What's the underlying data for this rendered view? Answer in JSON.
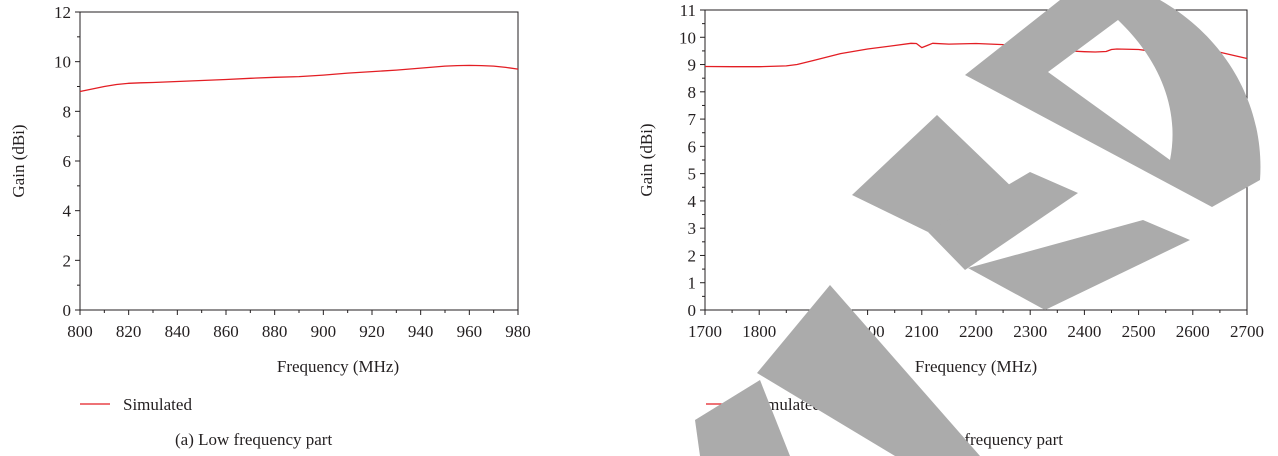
{
  "watermark_color": "#ababab",
  "charts": [
    {
      "caption": "(a)  Low frequency part",
      "legend_label": "Simulated",
      "chart_data": {
        "type": "line",
        "title": "",
        "xlabel": "Frequency (MHz)",
        "ylabel": "Gain (dBi)",
        "xlim": [
          800,
          980
        ],
        "ylim": [
          0,
          12
        ],
        "xticks": [
          800,
          820,
          840,
          860,
          880,
          900,
          920,
          940,
          960,
          980
        ],
        "yticks": [
          0,
          2,
          4,
          6,
          8,
          10,
          12
        ],
        "grid": false,
        "legend_position": "bottom-left",
        "series": [
          {
            "name": "Simulated",
            "color": "#e31e24",
            "x": [
              800,
              805,
              810,
              815,
              820,
              825,
              830,
              840,
              850,
              860,
              870,
              880,
              890,
              900,
              910,
              920,
              930,
              940,
              950,
              955,
              960,
              965,
              970,
              975,
              980
            ],
            "y": [
              8.8,
              8.9,
              9.0,
              9.08,
              9.13,
              9.15,
              9.16,
              9.2,
              9.24,
              9.28,
              9.33,
              9.37,
              9.4,
              9.46,
              9.54,
              9.6,
              9.66,
              9.74,
              9.82,
              9.84,
              9.85,
              9.84,
              9.82,
              9.77,
              9.7
            ]
          }
        ]
      }
    },
    {
      "caption": "(b)  High frequency part",
      "legend_label": "Simulated",
      "chart_data": {
        "type": "line",
        "title": "",
        "xlabel": "Frequency (MHz)",
        "ylabel": "Gain (dBi)",
        "xlim": [
          1700,
          2700
        ],
        "ylim": [
          0,
          11
        ],
        "xticks": [
          1700,
          1800,
          1900,
          2000,
          2100,
          2200,
          2300,
          2400,
          2500,
          2600,
          2700
        ],
        "yticks": [
          0,
          1,
          2,
          3,
          4,
          5,
          6,
          7,
          8,
          9,
          10,
          11
        ],
        "grid": false,
        "legend_position": "bottom-left",
        "series": [
          {
            "name": "Simulated",
            "color": "#e31e24",
            "x": [
              1700,
              1750,
              1800,
              1850,
              1870,
              1900,
              1950,
              2000,
              2050,
              2080,
              2090,
              2100,
              2110,
              2120,
              2150,
              2200,
              2250,
              2280,
              2300,
              2320,
              2330,
              2340,
              2350,
              2370,
              2400,
              2420,
              2440,
              2450,
              2460,
              2500,
              2520,
              2540,
              2600,
              2650,
              2700
            ],
            "y": [
              8.93,
              8.92,
              8.92,
              8.95,
              9.0,
              9.15,
              9.4,
              9.57,
              9.7,
              9.78,
              9.77,
              9.62,
              9.7,
              9.78,
              9.75,
              9.77,
              9.73,
              9.6,
              9.52,
              9.5,
              9.6,
              9.62,
              9.6,
              9.5,
              9.47,
              9.46,
              9.48,
              9.55,
              9.57,
              9.55,
              9.5,
              9.58,
              9.6,
              9.45,
              9.22
            ]
          }
        ]
      }
    }
  ]
}
